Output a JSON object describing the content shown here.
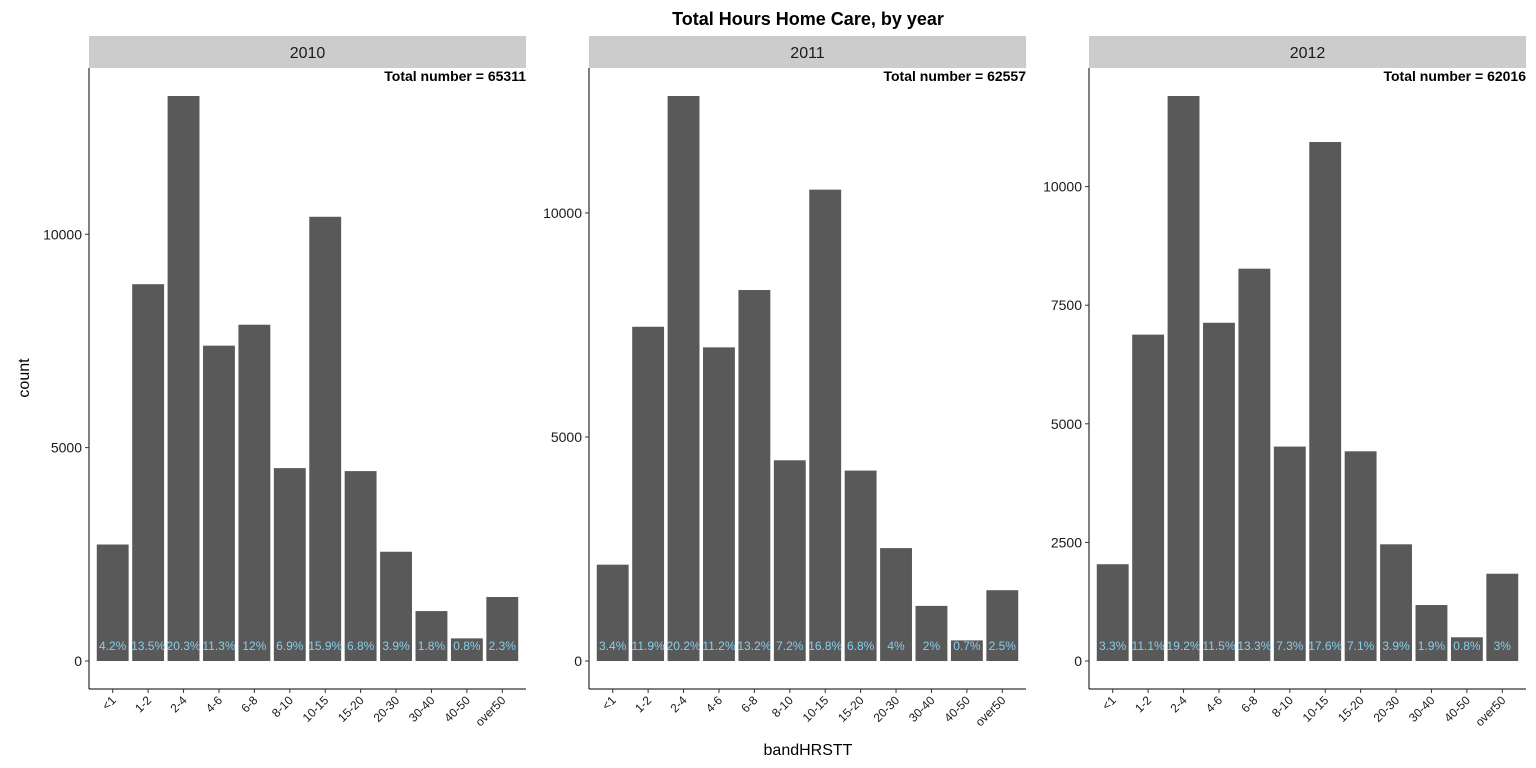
{
  "chart_data": {
    "type": "bar",
    "title": "Total Hours Home Care, by year",
    "xlabel": "bandHRSTT",
    "ylabel": "count",
    "categories": [
      "<1",
      "1-2",
      "2-4",
      "4-6",
      "6-8",
      "8-10",
      "10-15",
      "15-20",
      "20-30",
      "30-40",
      "40-50",
      "over50"
    ],
    "colors": {
      "bar": "#595959",
      "strip": "#cccccc",
      "pct_label": "#87CEEB"
    },
    "facets": [
      {
        "strip": "2010",
        "total_label": "Total number = 65311",
        "ylim": [
          0,
          13900
        ],
        "yticks": [
          0,
          5000,
          10000
        ],
        "values": [
          2730,
          8830,
          13240,
          7390,
          7880,
          4520,
          10410,
          4450,
          2560,
          1170,
          530,
          1500
        ],
        "pct_labels": [
          "4.2%",
          "13.5%",
          "20.3%",
          "11.3%",
          "12%",
          "6.9%",
          "15.9%",
          "6.8%",
          "3.9%",
          "1.8%",
          "0.8%",
          "2.3%"
        ]
      },
      {
        "strip": "2011",
        "total_label": "Total number = 62557",
        "ylim": [
          0,
          13000
        ],
        "yticks": [
          0,
          5000,
          10000
        ],
        "values": [
          2150,
          7460,
          12610,
          7000,
          8280,
          4480,
          10520,
          4250,
          2520,
          1230,
          460,
          1580
        ],
        "pct_labels": [
          "3.4%",
          "11.9%",
          "20.2%",
          "11.2%",
          "13.2%",
          "7.2%",
          "16.8%",
          "6.8%",
          "4%",
          "2%",
          "0.7%",
          "2.5%"
        ]
      },
      {
        "strip": "2012",
        "total_label": "Total number = 62016",
        "ylim": [
          0,
          12400
        ],
        "yticks": [
          0,
          2500,
          5000,
          7500,
          10000
        ],
        "values": [
          2040,
          6880,
          11910,
          7130,
          8270,
          4520,
          10940,
          4420,
          2460,
          1180,
          500,
          1840
        ],
        "pct_labels": [
          "3.3%",
          "11.1%",
          "19.2%",
          "11.5%",
          "13.3%",
          "7.3%",
          "17.6%",
          "7.1%",
          "3.9%",
          "1.9%",
          "0.8%",
          "3%"
        ]
      }
    ]
  }
}
